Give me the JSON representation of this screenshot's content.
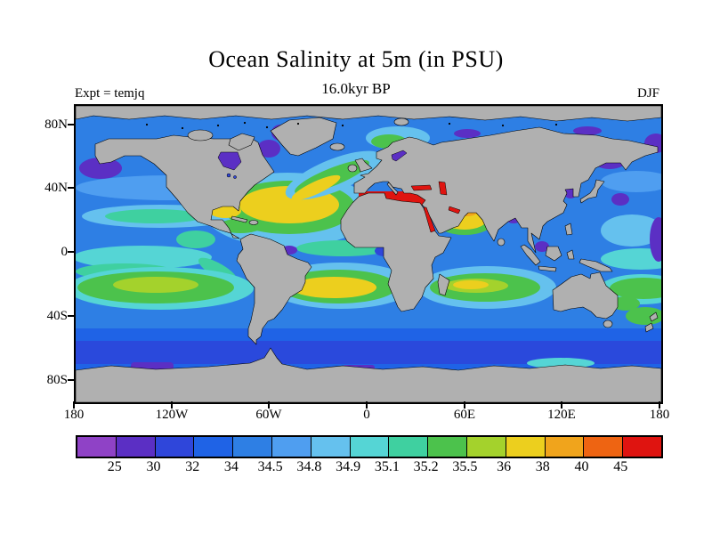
{
  "header": {
    "title": "Ocean Salinity at 5m (in PSU)",
    "subtitle": "16.0kyr BP",
    "experiment_label": "Expt = temjq",
    "season_label": "DJF"
  },
  "chart_data": {
    "type": "heatmap",
    "projection": "equirectangular world map, filled contours",
    "title": "Ocean Salinity at 5m (in PSU)",
    "subtitle": "16.0kyr BP",
    "experiment": "temjq",
    "season": "DJF",
    "variable": "Ocean Salinity",
    "depth": "5m",
    "units": "PSU",
    "levels": [
      25,
      30,
      32,
      34,
      34.5,
      34.8,
      34.9,
      35.1,
      35.2,
      35.5,
      36,
      38,
      40,
      45
    ],
    "level_labels": [
      "25",
      "30",
      "32",
      "34",
      "34.5",
      "34.8",
      "34.9",
      "35.1",
      "35.2",
      "35.5",
      "36",
      "38",
      "40",
      "45"
    ],
    "palette": [
      "#8f42c6",
      "#5b2fc4",
      "#2f46da",
      "#1f63e6",
      "#2e7fe4",
      "#4f9ef0",
      "#65c1ee",
      "#55d5d5",
      "#3fd0a0",
      "#4cc24c",
      "#a4d22c",
      "#eccf1e",
      "#f0a41c",
      "#ee6412",
      "#df1410"
    ],
    "land_color": "#b0b0b0",
    "x_axis": {
      "tick_labels": [
        "180",
        "120W",
        "60W",
        "0",
        "60E",
        "120E",
        "180"
      ],
      "range": [
        -180,
        180
      ]
    },
    "y_axis": {
      "tick_labels": [
        "80N",
        "40N",
        "0",
        "40S",
        "80S"
      ],
      "range": [
        -90,
        90
      ]
    },
    "legend_position": "bottom horizontal colorbar",
    "notable_features": {
      "subtropical_gyres_salinity": "36-38 PSU (yellow) in N/S Atlantic, Indian, Arabian Sea",
      "mediterranean_red_sea_persian_gulf": ">40 PSU (red)",
      "arctic_marginal_seas_hudson_bay_baltic": "<30 PSU (purple)",
      "southern_ocean_band": "32-34 PSU (deep blue)"
    }
  }
}
